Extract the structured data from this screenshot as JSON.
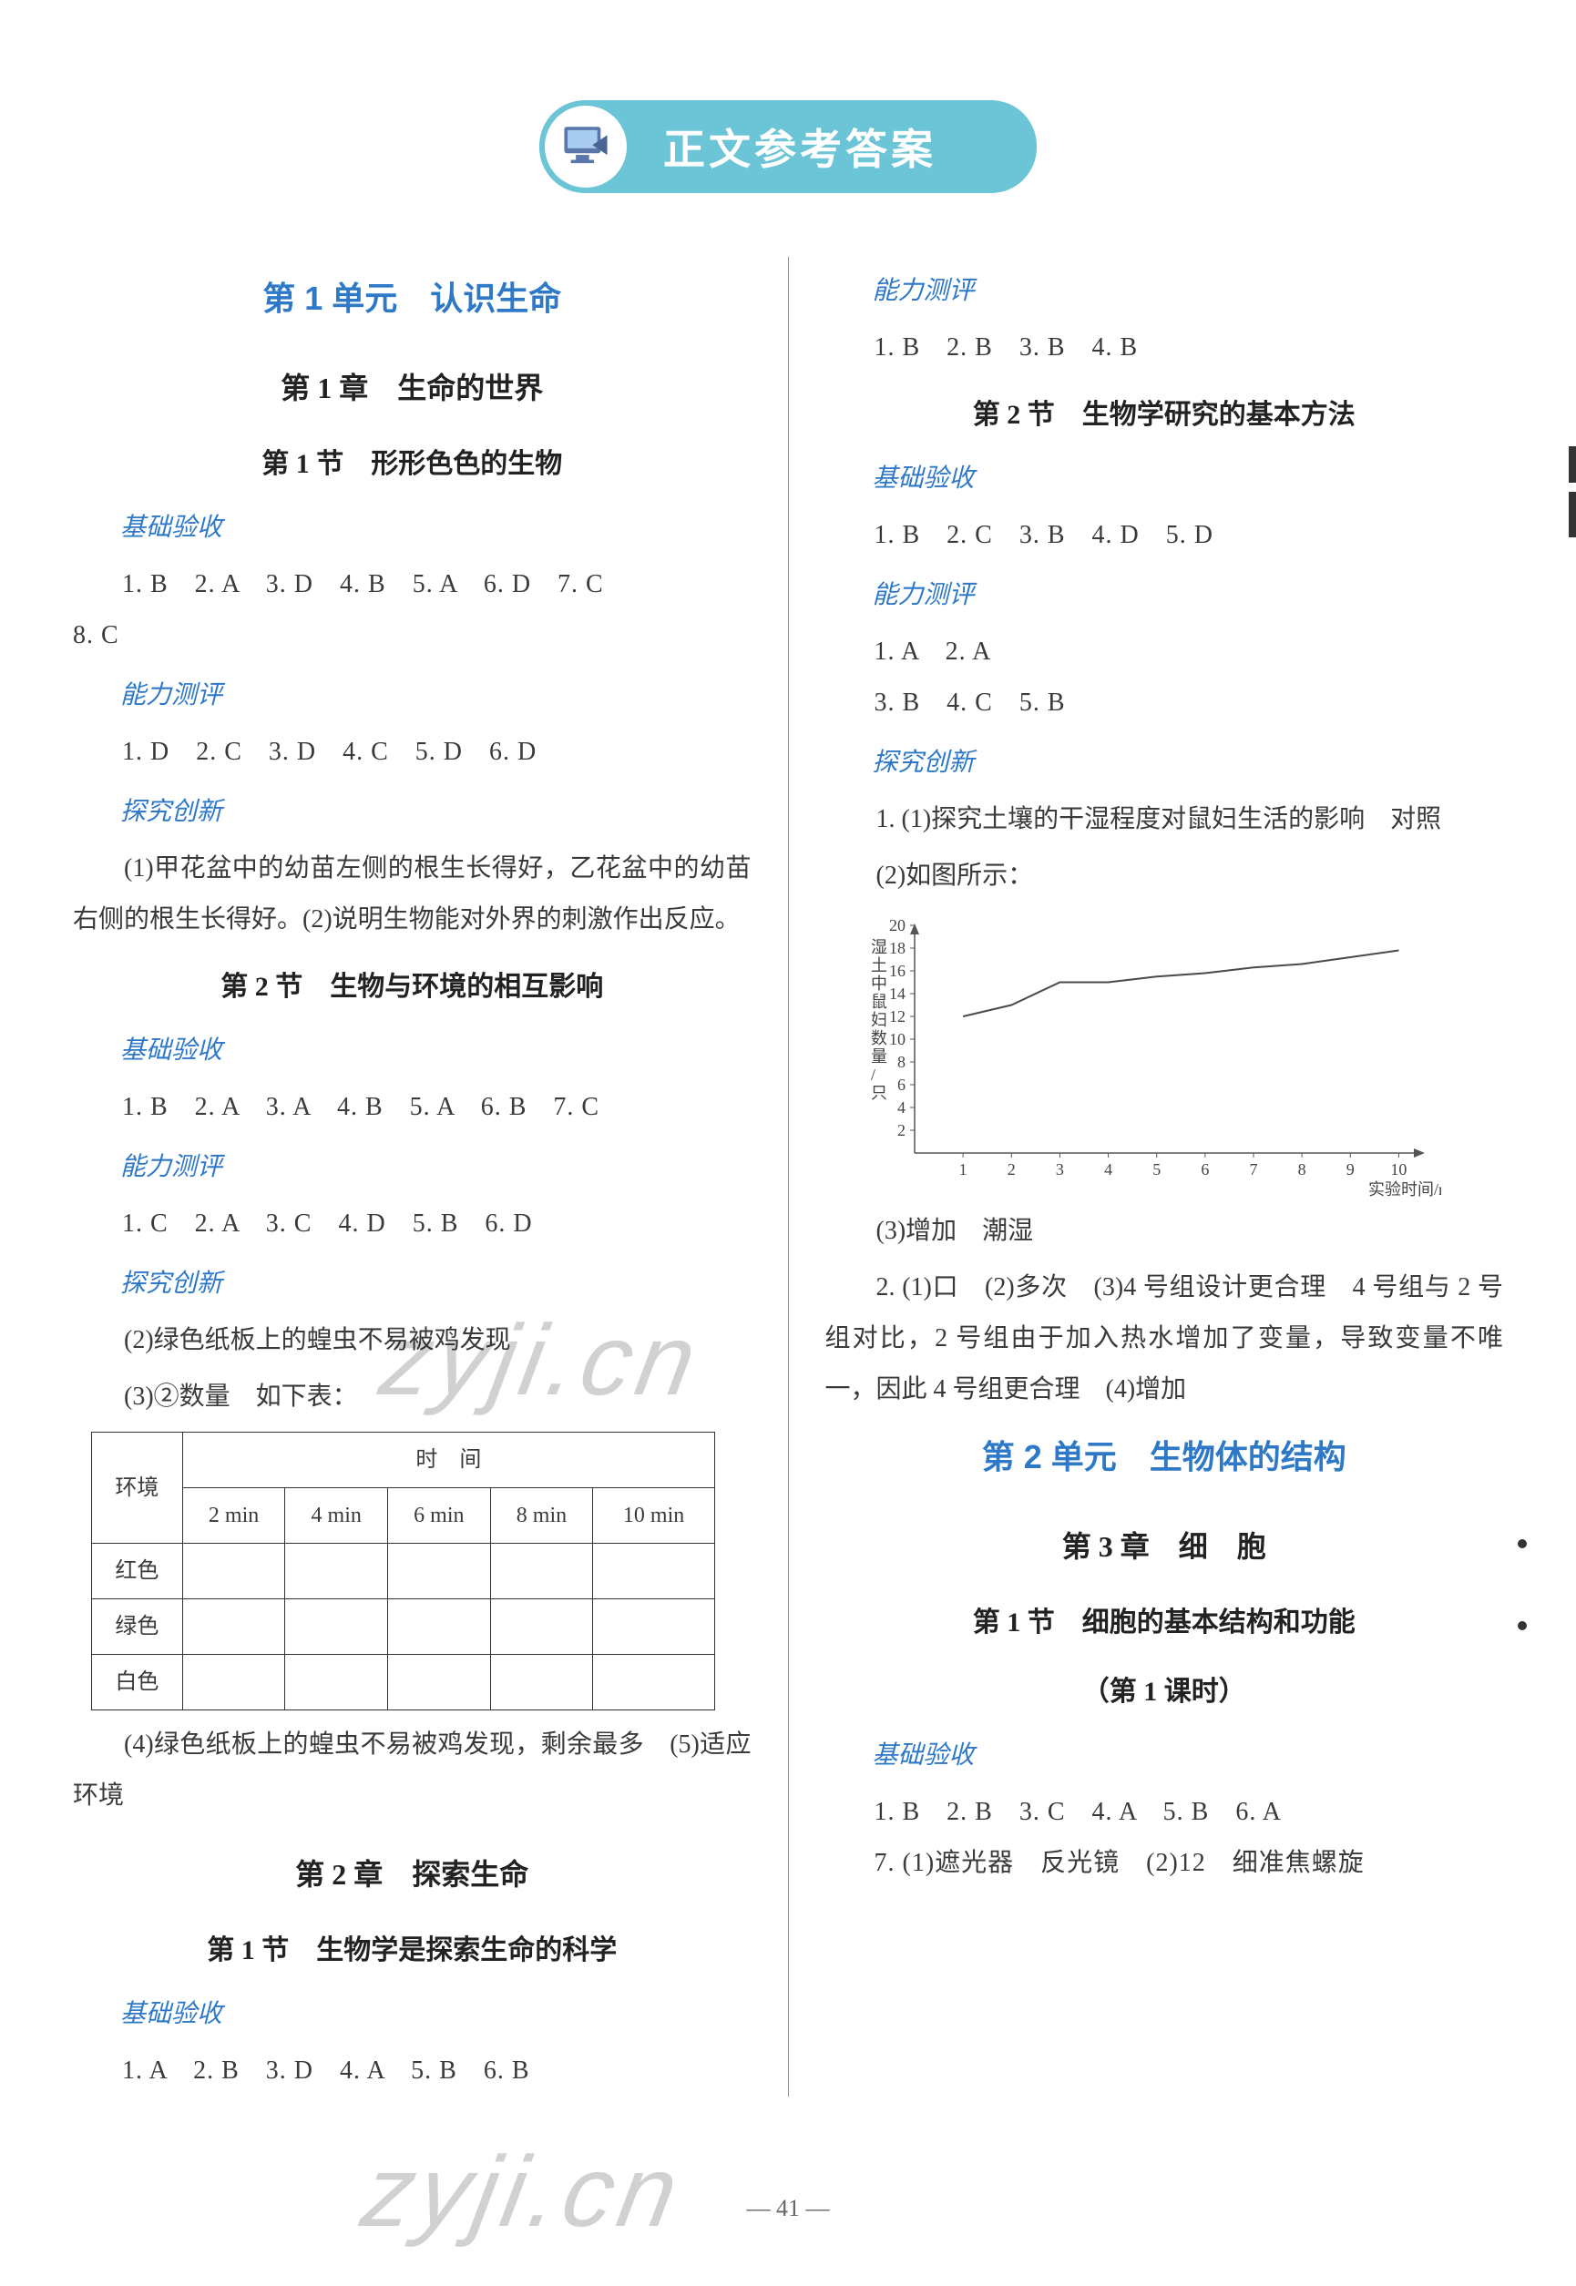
{
  "banner": {
    "title": "正文参考答案"
  },
  "left": {
    "unit1": "第 1 单元　认识生命",
    "ch1": "第 1 章　生命的世界",
    "s1_1": "第 1 节　形形色色的生物",
    "lbl_base": "基础验收",
    "lbl_cap": "能力测评",
    "lbl_exp": "探究创新",
    "s1_1_base": "1. B　2. A　3. D　4. B　5. A　6. D　7. C",
    "s1_1_base2": "8. C",
    "s1_1_cap": "1. D　2. C　3. D　4. C　5. D　6. D",
    "s1_1_exp": "(1)甲花盆中的幼苗左侧的根生长得好，乙花盆中的幼苗右侧的根生长得好。(2)说明生物能对外界的刺激作出反应。",
    "s1_2": "第 2 节　生物与环境的相互影响",
    "s1_2_base": "1. B　2. A　3. A　4. B　5. A　6. B　7. C",
    "s1_2_cap": "1. C　2. A　3. C　4. D　5. B　6. D",
    "s1_2_exp1": "(2)绿色纸板上的蝗虫不易被鸡发现",
    "s1_2_exp2": "(3)②数量　如下表：",
    "table": {
      "env": "环境",
      "time": "时　间",
      "cols": [
        "2 min",
        "4 min",
        "6 min",
        "8 min",
        "10 min"
      ],
      "rows": [
        "红色",
        "绿色",
        "白色"
      ]
    },
    "s1_2_exp3": "(4)绿色纸板上的蝗虫不易被鸡发现，剩余最多　(5)适应环境",
    "ch2": "第 2 章　探索生命",
    "s2_1": "第 1 节　生物学是探索生命的科学",
    "s2_1_base": "1. A　2. B　3. D　4. A　5. B　6. B"
  },
  "right": {
    "s2_1_cap": "1. B　2. B　3. B　4. B",
    "s2_2": "第 2 节　生物学研究的基本方法",
    "s2_2_base": "1. B　2. C　3. B　4. D　5. D",
    "s2_2_cap1": "1. A　2. A",
    "s2_2_cap2": "3. B　4. C　5. B",
    "exp1": "1. (1)探究土壤的干湿程度对鼠妇生活的影响　对照",
    "exp2": "(2)如图所示：",
    "chart": {
      "type": "line",
      "xlabel": "实验时间/min",
      "ylabel": "湿土中鼠妇数量/只",
      "xticks": [
        1,
        2,
        3,
        4,
        5,
        6,
        7,
        8,
        9,
        10
      ],
      "yticks": [
        2,
        4,
        6,
        8,
        10,
        12,
        14,
        16,
        18,
        20
      ],
      "points": [
        [
          1,
          12
        ],
        [
          2,
          13
        ],
        [
          3,
          15
        ],
        [
          4,
          15
        ],
        [
          5,
          15.5
        ],
        [
          6,
          15.8
        ],
        [
          7,
          16.3
        ],
        [
          8,
          16.6
        ],
        [
          9,
          17.2
        ],
        [
          10,
          17.8
        ]
      ],
      "line_color": "#4a4a4a",
      "axis_color": "#555555",
      "tick_fontsize": 18,
      "label_fontsize": 18
    },
    "exp3": "(3)增加　潮湿",
    "exp4": "2. (1)口　(2)多次　(3)4 号组设计更合理　4 号组与 2 号组对比，2 号组由于加入热水增加了变量，导致变量不唯一，因此 4 号组更合理　(4)增加",
    "unit2": "第 2 单元　生物体的结构",
    "ch3": "第 3 章　细　胞",
    "s3_1": "第 1 节　细胞的基本结构和功能",
    "s3_1_sub": "（第 1 课时）",
    "s3_1_base": "1. B　2. B　3. C　4. A　5. B　6. A",
    "s3_1_base2": "7. (1)遮光器　反光镜　(2)12　细准焦螺旋"
  },
  "footer": "— 41 —"
}
